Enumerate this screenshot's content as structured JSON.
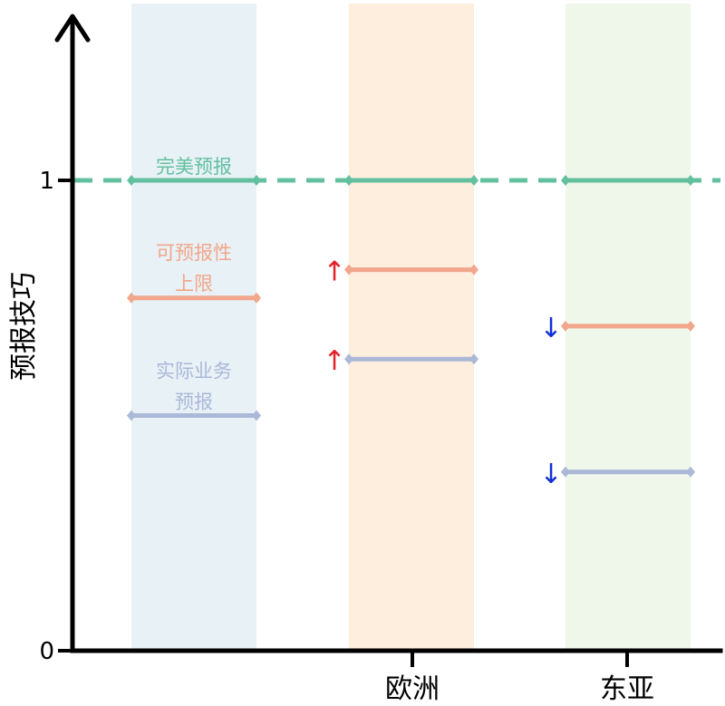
{
  "chart_data": {
    "type": "range-diagram",
    "ylabel": "预报技巧",
    "yticks": [
      {
        "value": 0,
        "label": "0"
      },
      {
        "value": 1,
        "label": "1"
      }
    ],
    "ylim": [
      0,
      1
    ],
    "categories": [
      "",
      "欧洲",
      "东亚"
    ],
    "band_colors": [
      "#e8f1f6",
      "#fdeedd",
      "#eef7ea"
    ],
    "series": [
      {
        "key": "perfect",
        "color": "#63c09f",
        "dashed_reference": true,
        "values": [
          1,
          1,
          1
        ]
      },
      {
        "key": "upper",
        "color": "#f2a68b",
        "values": [
          0.75,
          0.81,
          0.69
        ]
      },
      {
        "key": "actual",
        "color": "#abb8d8",
        "values": [
          0.5,
          0.62,
          0.38
        ]
      }
    ],
    "annotations": [
      {
        "text": "完美预报",
        "category": 0,
        "series": "perfect",
        "color": "#63c09f"
      },
      {
        "text": "可预报性",
        "category": 0,
        "series": "upper",
        "color": "#f2a68b",
        "line": 1
      },
      {
        "text": "上限",
        "category": 0,
        "series": "upper",
        "color": "#f2a68b",
        "line": 2
      },
      {
        "text": "实际业务",
        "category": 0,
        "series": "actual",
        "color": "#abb8d8",
        "line": 1
      },
      {
        "text": "预报",
        "category": 0,
        "series": "actual",
        "color": "#abb8d8",
        "line": 2
      }
    ],
    "change_arrows": [
      {
        "category": 1,
        "series": "upper",
        "symbol": "↑",
        "color": "#e2202a"
      },
      {
        "category": 1,
        "series": "actual",
        "symbol": "↑",
        "color": "#e2202a"
      },
      {
        "category": 2,
        "series": "upper",
        "symbol": "↓",
        "color": "#1330d6"
      },
      {
        "category": 2,
        "series": "actual",
        "symbol": "↓",
        "color": "#1330d6"
      }
    ]
  }
}
